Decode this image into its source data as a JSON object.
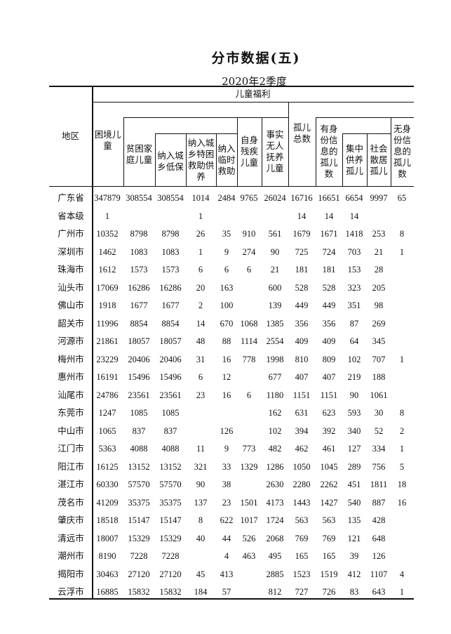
{
  "title": "分市数据(五)",
  "subtitle": "2020年2季度",
  "headers": {
    "region": "地区",
    "group": "儿童福利",
    "difficult_children": "困境儿童",
    "poor_family_children": "贫困家庭儿童",
    "urban_rural_dibao": "纳入城乡低保",
    "special_hardship": "纳入城乡特困救助供养",
    "temporary_assistance": "纳入临时救助",
    "disabled_children": "自身残疾儿童",
    "de_facto_unsupported": "事实无人抚养儿童",
    "orphans_total": "孤儿总数",
    "orphans_with_id": "有身份信息的孤儿数",
    "centralized_orphans": "集中供养孤儿",
    "dispersed_orphans": "社会散居孤儿",
    "orphans_without_id": "无身份信息的孤儿数"
  },
  "rows": [
    {
      "region": "广东省",
      "values": [
        "347879",
        "308554",
        "308554",
        "1014",
        "2484",
        "9765",
        "26024",
        "16716",
        "16651",
        "6654",
        "9997",
        "65"
      ]
    },
    {
      "region": "省本级",
      "values": [
        "1",
        "",
        "",
        "1",
        "",
        "",
        "",
        "14",
        "14",
        "14",
        "",
        ""
      ]
    },
    {
      "region": "广州市",
      "values": [
        "10352",
        "8798",
        "8798",
        "26",
        "35",
        "910",
        "561",
        "1679",
        "1671",
        "1418",
        "253",
        "8"
      ]
    },
    {
      "region": "深圳市",
      "values": [
        "1462",
        "1083",
        "1083",
        "1",
        "9",
        "274",
        "90",
        "725",
        "724",
        "703",
        "21",
        "1"
      ]
    },
    {
      "region": "珠海市",
      "values": [
        "1612",
        "1573",
        "1573",
        "6",
        "6",
        "6",
        "21",
        "181",
        "181",
        "153",
        "28",
        ""
      ]
    },
    {
      "region": "汕头市",
      "values": [
        "17069",
        "16286",
        "16286",
        "20",
        "163",
        "",
        "600",
        "528",
        "528",
        "323",
        "205",
        ""
      ]
    },
    {
      "region": "佛山市",
      "values": [
        "1918",
        "1677",
        "1677",
        "2",
        "100",
        "",
        "139",
        "449",
        "449",
        "351",
        "98",
        ""
      ]
    },
    {
      "region": "韶关市",
      "values": [
        "11996",
        "8854",
        "8854",
        "14",
        "670",
        "1068",
        "1385",
        "356",
        "356",
        "87",
        "269",
        ""
      ]
    },
    {
      "region": "河源市",
      "values": [
        "21861",
        "18057",
        "18057",
        "48",
        "88",
        "1114",
        "2554",
        "409",
        "409",
        "64",
        "345",
        ""
      ]
    },
    {
      "region": "梅州市",
      "values": [
        "23229",
        "20406",
        "20406",
        "31",
        "16",
        "778",
        "1998",
        "810",
        "809",
        "102",
        "707",
        "1"
      ]
    },
    {
      "region": "惠州市",
      "values": [
        "16191",
        "15496",
        "15496",
        "6",
        "12",
        "",
        "677",
        "407",
        "407",
        "219",
        "188",
        ""
      ]
    },
    {
      "region": "汕尾市",
      "values": [
        "24786",
        "23561",
        "23561",
        "23",
        "16",
        "6",
        "1180",
        "1151",
        "1151",
        "90",
        "1061",
        ""
      ]
    },
    {
      "region": "东莞市",
      "values": [
        "1247",
        "1085",
        "1085",
        "",
        "",
        "",
        "162",
        "631",
        "623",
        "593",
        "30",
        "8"
      ]
    },
    {
      "region": "中山市",
      "values": [
        "1065",
        "837",
        "837",
        "",
        "126",
        "",
        "102",
        "394",
        "392",
        "340",
        "52",
        "2"
      ]
    },
    {
      "region": "江门市",
      "values": [
        "5363",
        "4088",
        "4088",
        "11",
        "9",
        "773",
        "482",
        "462",
        "461",
        "127",
        "334",
        "1"
      ]
    },
    {
      "region": "阳江市",
      "values": [
        "16125",
        "13152",
        "13152",
        "321",
        "33",
        "1329",
        "1286",
        "1050",
        "1045",
        "289",
        "756",
        "5"
      ]
    },
    {
      "region": "湛江市",
      "values": [
        "60330",
        "57570",
        "57570",
        "90",
        "38",
        "",
        "2630",
        "2280",
        "2262",
        "451",
        "1811",
        "18"
      ]
    },
    {
      "region": "茂名市",
      "values": [
        "41209",
        "35375",
        "35375",
        "137",
        "23",
        "1501",
        "4173",
        "1443",
        "1427",
        "540",
        "887",
        "16"
      ]
    },
    {
      "region": "肇庆市",
      "values": [
        "18518",
        "15147",
        "15147",
        "8",
        "622",
        "1017",
        "1724",
        "563",
        "563",
        "135",
        "428",
        ""
      ]
    },
    {
      "region": "清远市",
      "values": [
        "18007",
        "15329",
        "15329",
        "40",
        "44",
        "526",
        "2068",
        "769",
        "769",
        "121",
        "648",
        ""
      ]
    },
    {
      "region": "潮州市",
      "values": [
        "8190",
        "7228",
        "7228",
        "",
        "4",
        "463",
        "495",
        "165",
        "165",
        "39",
        "126",
        ""
      ]
    },
    {
      "region": "揭阳市",
      "values": [
        "30463",
        "27120",
        "27120",
        "45",
        "413",
        "",
        "2885",
        "1523",
        "1519",
        "412",
        "1107",
        "4"
      ]
    },
    {
      "region": "云浮市",
      "values": [
        "16885",
        "15832",
        "15832",
        "184",
        "57",
        "",
        "812",
        "727",
        "726",
        "83",
        "643",
        "1"
      ]
    }
  ]
}
